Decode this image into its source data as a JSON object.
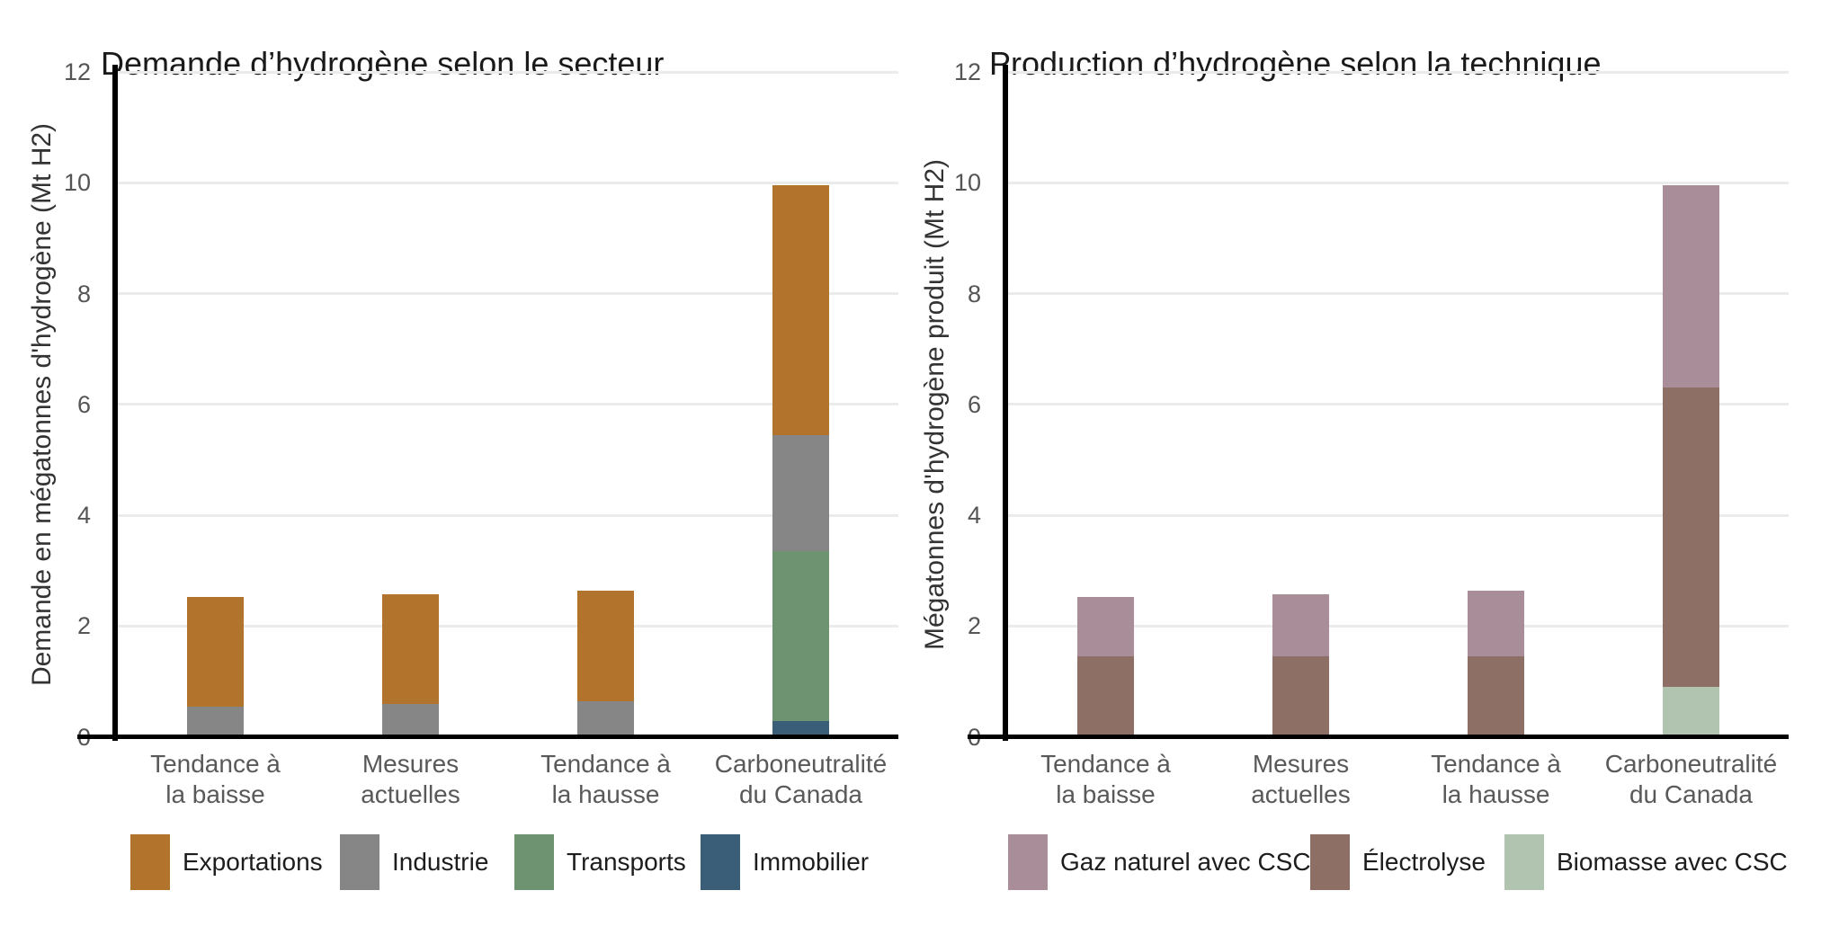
{
  "page": {
    "background": "#ffffff",
    "axis_line_color": "#000000",
    "gridline_color": "#ebebeb",
    "tick_label_color": "#555555",
    "category_label_color": "#595959",
    "title_color": "#1a1a1a",
    "legend_text_color": "#1d1d1d"
  },
  "chart_data": [
    {
      "type": "bar",
      "stacked": true,
      "title": "Demande d’hydrogène selon le secteur",
      "ylabel": "Demande en mégatonnes d'hydrogène (Mt H2)",
      "xlabel": "",
      "ylim": [
        0,
        12
      ],
      "yticks": [
        0,
        2,
        4,
        6,
        8,
        10,
        12
      ],
      "grid": true,
      "legend_position": "bottom",
      "categories": [
        "Tendance à\nla baisse",
        "Mesures\nactuelles",
        "Tendance à\nla hausse",
        "Carboneutralité\ndu Canada"
      ],
      "series": [
        {
          "name": "Immobilier",
          "color": "#3a5e77",
          "values": [
            0,
            0,
            0,
            0.28
          ]
        },
        {
          "name": "Transports",
          "color": "#6d9370",
          "values": [
            0,
            0,
            0,
            3.07
          ]
        },
        {
          "name": "Industrie",
          "color": "#868686",
          "values": [
            0.55,
            0.6,
            0.64,
            2.1
          ]
        },
        {
          "name": "Exportations",
          "color": "#b2742c",
          "values": [
            1.98,
            1.98,
            1.99,
            4.5
          ]
        }
      ],
      "legend_order": [
        "Exportations",
        "Industrie",
        "Transports",
        "Immobilier"
      ],
      "totals": [
        2.53,
        2.58,
        2.63,
        9.95
      ]
    },
    {
      "type": "bar",
      "stacked": true,
      "title": "Production d’hydrogène selon la technique",
      "ylabel": "Mégatonnes d'hydrogène produit (Mt H2)",
      "xlabel": "",
      "ylim": [
        0,
        12
      ],
      "yticks": [
        0,
        2,
        4,
        6,
        8,
        10,
        12
      ],
      "grid": true,
      "legend_position": "bottom",
      "categories": [
        "Tendance à\nla baisse",
        "Mesures\nactuelles",
        "Tendance à\nla hausse",
        "Carboneutralité\ndu Canada"
      ],
      "series": [
        {
          "name": "Biomasse avec CSC",
          "color": "#b0c4af",
          "values": [
            0,
            0,
            0,
            0.9
          ]
        },
        {
          "name": "Électrolyse",
          "color": "#8d6f65",
          "values": [
            1.45,
            1.45,
            1.45,
            5.4
          ]
        },
        {
          "name": "Gaz naturel avec CSC",
          "color": "#a98d98",
          "values": [
            1.08,
            1.13,
            1.18,
            3.65
          ]
        }
      ],
      "legend_order": [
        "Gaz naturel avec CSC",
        "Électrolyse",
        "Biomasse avec CSC"
      ],
      "totals": [
        2.53,
        2.58,
        2.63,
        9.95
      ]
    }
  ]
}
